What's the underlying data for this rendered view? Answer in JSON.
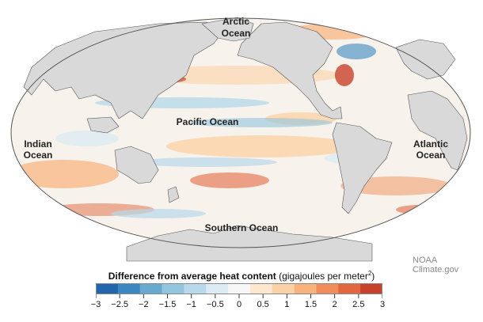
{
  "map": {
    "labels": {
      "arctic_line1": "Arctic",
      "arctic_line2": "Ocean",
      "pacific": "Pacific Ocean",
      "indian_line1": "Indian",
      "indian_line2": "Ocean",
      "atlantic_line1": "Atlantic",
      "atlantic_line2": "Ocean",
      "southern": "Southern Ocean"
    },
    "credit": "NOAA Climate.gov",
    "colors": {
      "land": "#d9d9d9",
      "land_stroke": "#555555",
      "ocean_neutral": "#f6f1ea",
      "negative": "#2c7bb6",
      "positive": "#d7301f"
    }
  },
  "colorbar": {
    "title": "Difference from average heat content",
    "unit": "(gigajoules per meter",
    "unit_sup": "2",
    "unit_close": ")",
    "min": -3,
    "max": 3,
    "ticks": [
      "−3",
      "−2.5",
      "−2",
      "−1.5",
      "−1",
      "−0.5",
      "0",
      "0.5",
      "1",
      "1.5",
      "2",
      "2.5",
      "3"
    ],
    "colors": [
      "#2166ac",
      "#3a87c2",
      "#67a9cf",
      "#92c5de",
      "#b8d9ea",
      "#dcebf3",
      "#f7f7f7",
      "#fde8cf",
      "#fbd2a6",
      "#f8b27c",
      "#f18d5a",
      "#e2673f",
      "#c8412b"
    ]
  }
}
